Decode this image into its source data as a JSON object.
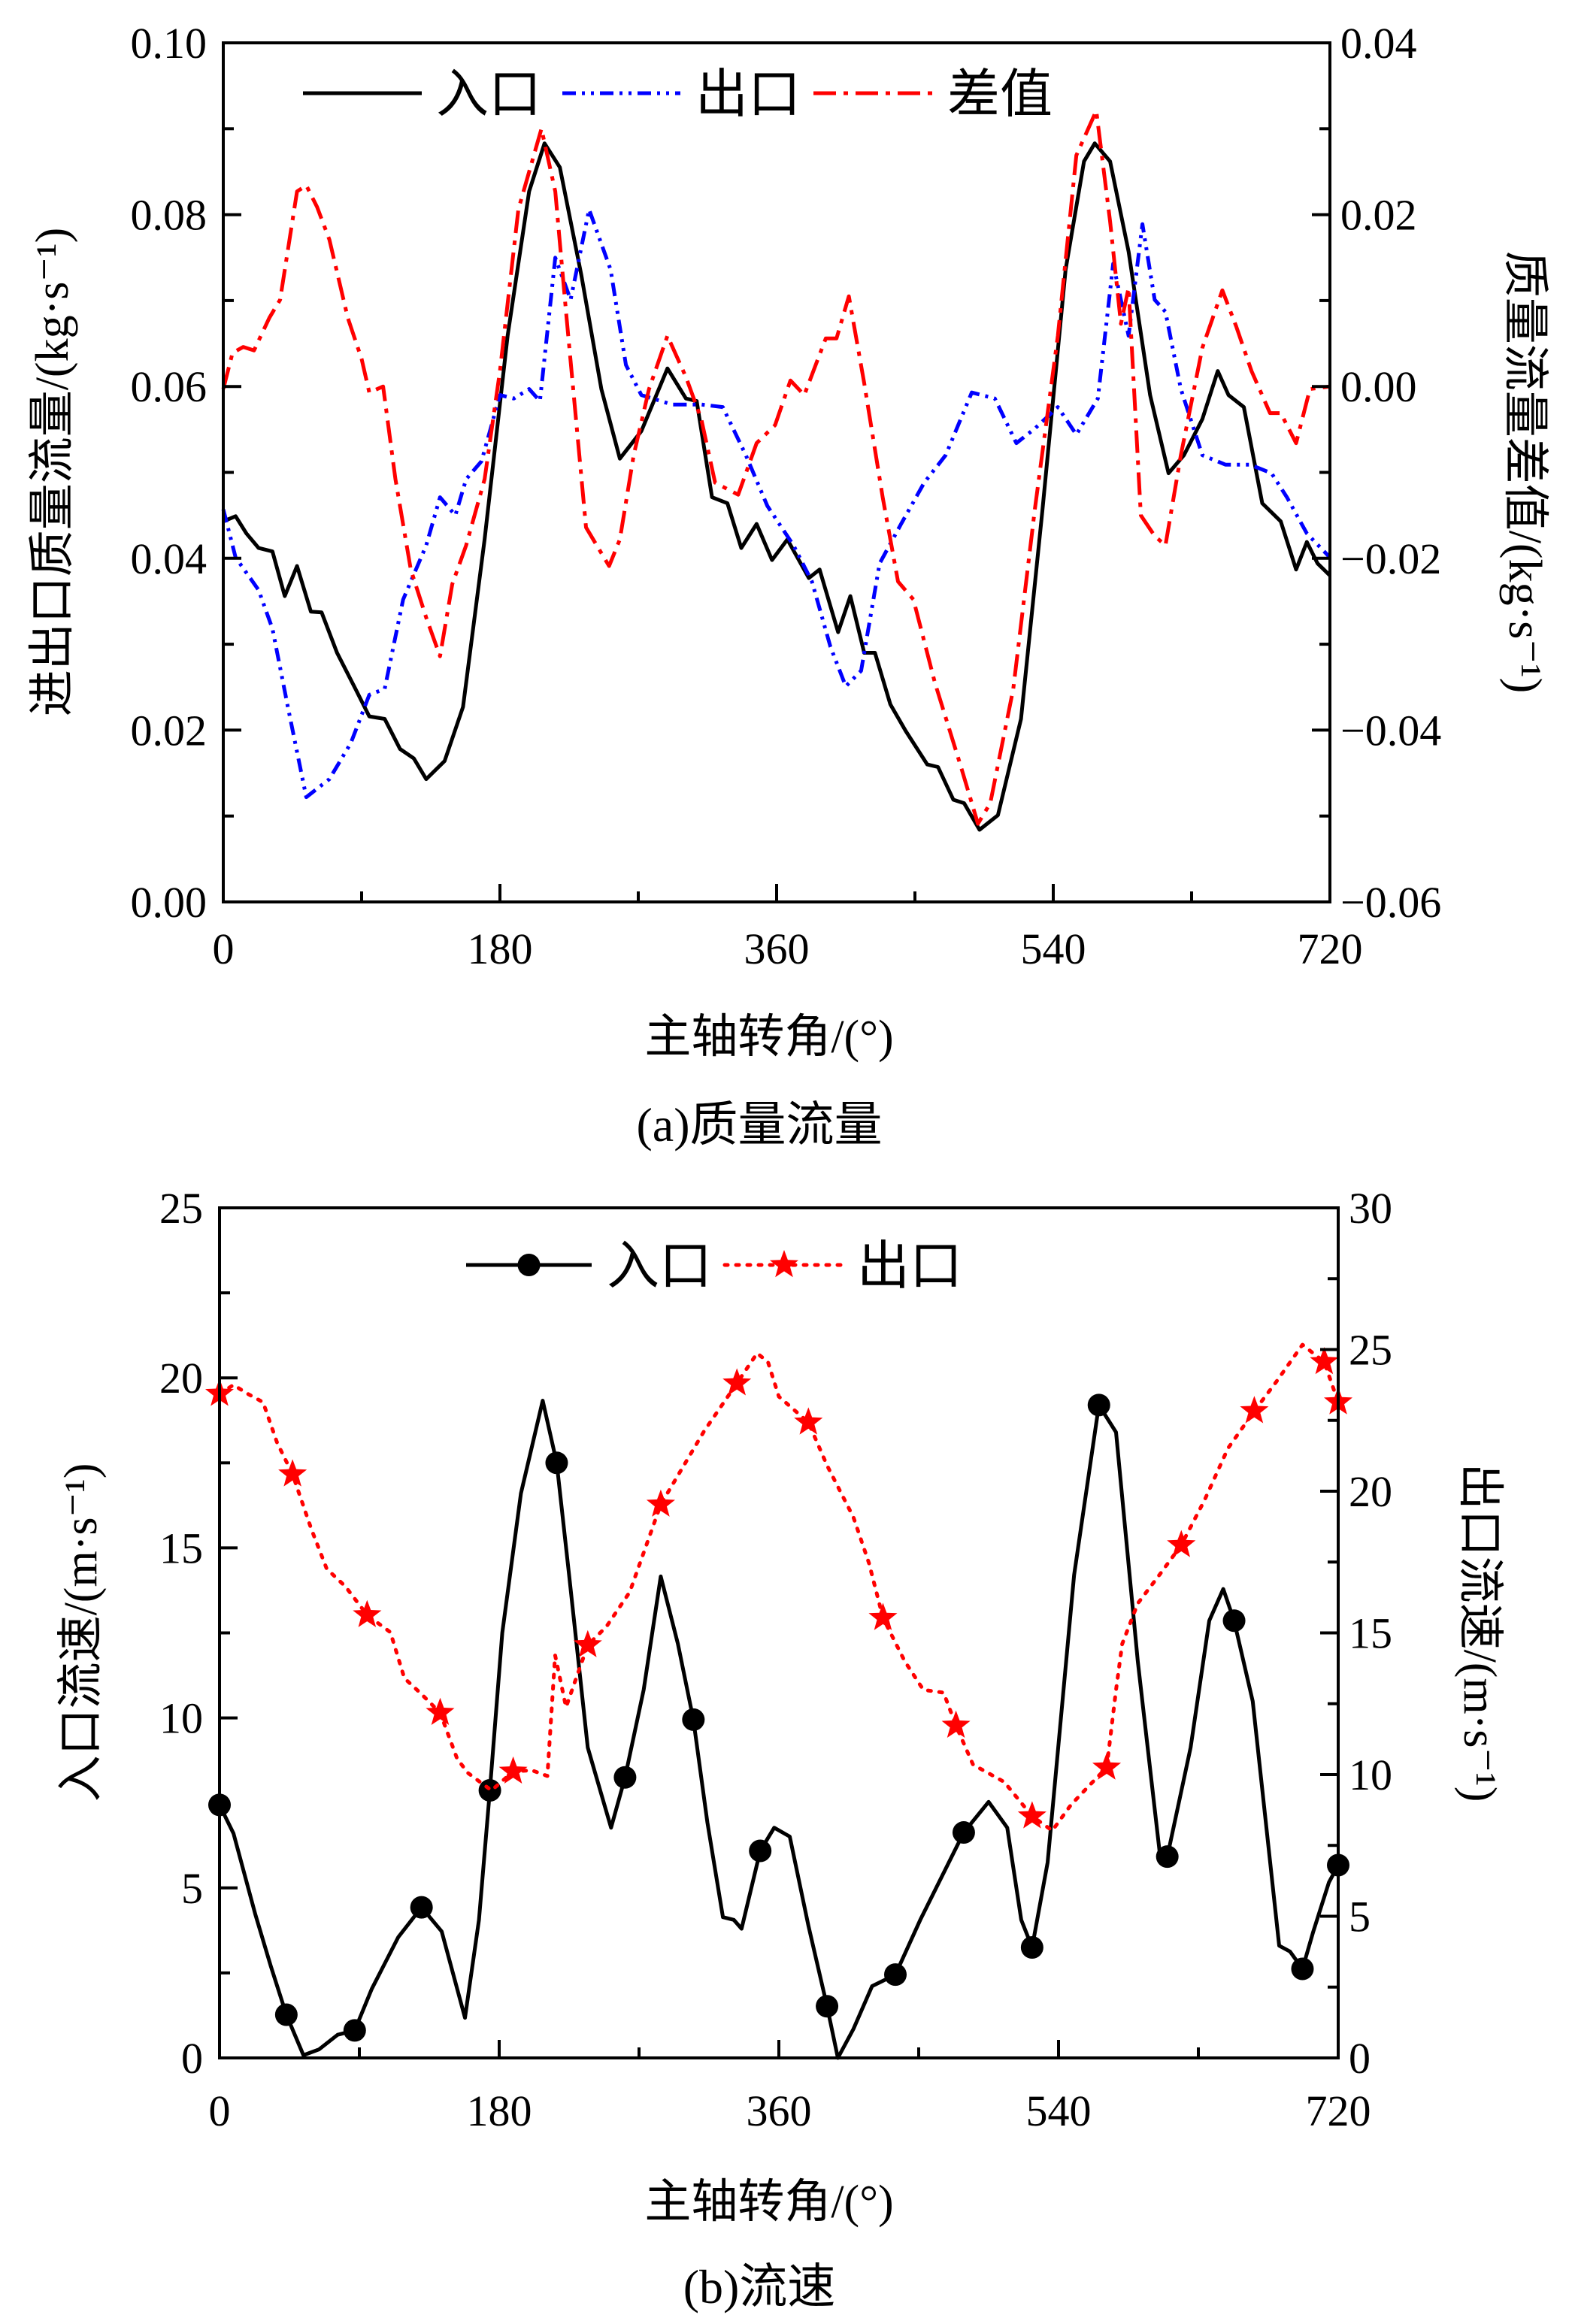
{
  "chart_data": [
    {
      "type": "line",
      "caption": "(a)质量流量",
      "xlabel": "主轴转角/(°)",
      "ylabel": "进出口质量流量/(kg·s⁻¹)",
      "y2label": "质量流量差值/(kg·s⁻¹)",
      "xlim": [
        0,
        720
      ],
      "ylim": [
        0,
        0.1
      ],
      "y2lim": [
        -0.06,
        0.04
      ],
      "xticks": [
        "0",
        "180",
        "360",
        "540",
        "720"
      ],
      "yticks": [
        "0.00",
        "0.02",
        "0.04",
        "0.06",
        "0.08",
        "0.10"
      ],
      "y2ticks": [
        "−0.06",
        "−0.04",
        "−0.02",
        "0.00",
        "0.02",
        "0.04"
      ],
      "grid": false,
      "legend_position": "top",
      "series": [
        {
          "name": "入口",
          "axis": "left",
          "color": "#000000",
          "style": "solid",
          "x": [
            0,
            8,
            15,
            23,
            32,
            40,
            48,
            57,
            64,
            74,
            86,
            95,
            105,
            115,
            124,
            132,
            144,
            156,
            170,
            185,
            199,
            209,
            219,
            233,
            246,
            258,
            272,
            289,
            301,
            308,
            318,
            328,
            337,
            347,
            357,
            367,
            381,
            388,
            400,
            408,
            417,
            424,
            434,
            444,
            458,
            465,
            475,
            482,
            492,
            504,
            519,
            533,
            548,
            560,
            567,
            577,
            589,
            603,
            615,
            625,
            637,
            647,
            654,
            664,
            676,
            688,
            698,
            705,
            712,
            720
          ],
          "y": [
            0.0443,
            0.0449,
            0.0429,
            0.0412,
            0.0408,
            0.0356,
            0.0391,
            0.0338,
            0.0337,
            0.029,
            0.0248,
            0.0216,
            0.0213,
            0.0178,
            0.0167,
            0.0143,
            0.0164,
            0.0227,
            0.0422,
            0.0659,
            0.0827,
            0.0883,
            0.0855,
            0.0729,
            0.0597,
            0.0516,
            0.0548,
            0.0621,
            0.0586,
            0.0583,
            0.0471,
            0.0464,
            0.0412,
            0.044,
            0.0398,
            0.0422,
            0.0377,
            0.0387,
            0.0314,
            0.0356,
            0.029,
            0.029,
            0.023,
            0.0199,
            0.016,
            0.0157,
            0.0119,
            0.0115,
            0.0084,
            0.0101,
            0.0213,
            0.0457,
            0.0736,
            0.0862,
            0.0883,
            0.0862,
            0.0757,
            0.059,
            0.0499,
            0.052,
            0.0562,
            0.0618,
            0.059,
            0.0576,
            0.0464,
            0.0443,
            0.0387,
            0.0419,
            0.0394,
            0.038
          ]
        },
        {
          "name": "出口",
          "axis": "left",
          "color": "#0000FF",
          "style": "dash-dot-dot",
          "x": [
            0,
            8,
            23,
            32,
            42,
            54,
            69,
            83,
            95,
            105,
            117,
            132,
            141,
            151,
            158,
            168,
            180,
            189,
            199,
            206,
            216,
            226,
            238,
            252,
            262,
            272,
            292,
            311,
            325,
            340,
            354,
            371,
            383,
            395,
            405,
            415,
            427,
            441,
            456,
            470,
            487,
            502,
            516,
            528,
            543,
            555,
            569,
            579,
            589,
            598,
            606,
            613,
            623,
            637,
            652,
            668,
            682,
            692,
            705,
            720
          ],
          "y": [
            0.0457,
            0.0401,
            0.0363,
            0.0318,
            0.0227,
            0.0122,
            0.0143,
            0.0185,
            0.0241,
            0.0248,
            0.0352,
            0.0415,
            0.0471,
            0.045,
            0.0492,
            0.0513,
            0.059,
            0.0586,
            0.0597,
            0.0583,
            0.075,
            0.0701,
            0.0806,
            0.0736,
            0.0625,
            0.059,
            0.0579,
            0.0579,
            0.0576,
            0.052,
            0.0461,
            0.0415,
            0.0373,
            0.0297,
            0.0251,
            0.0269,
            0.0394,
            0.044,
            0.0488,
            0.052,
            0.0593,
            0.0586,
            0.0534,
            0.0551,
            0.0576,
            0.0544,
            0.0586,
            0.0743,
            0.0659,
            0.0789,
            0.0701,
            0.0687,
            0.0597,
            0.052,
            0.0509,
            0.0509,
            0.0499,
            0.0471,
            0.0429,
            0.0401
          ]
        },
        {
          "name": "差值",
          "axis": "right",
          "color": "#FF0000",
          "style": "dash-dot",
          "x": [
            0,
            6,
            13,
            20,
            30,
            37,
            48,
            54,
            61,
            69,
            81,
            90,
            95,
            104,
            112,
            122,
            132,
            141,
            149,
            158,
            170,
            180,
            192,
            207,
            216,
            223,
            236,
            243,
            251,
            258,
            267,
            277,
            289,
            301,
            311,
            320,
            335,
            347,
            359,
            369,
            378,
            392,
            399,
            407,
            417,
            429,
            439,
            449,
            463,
            480,
            491,
            499,
            514,
            528,
            543,
            555,
            568,
            577,
            584,
            589,
            597,
            606,
            613,
            623,
            637,
            650,
            659,
            669,
            681,
            688,
            698,
            707,
            720
          ],
          "y": [
            -0.0003,
            0.0039,
            0.0046,
            0.0042,
            0.008,
            0.0101,
            0.0227,
            0.0234,
            0.0209,
            0.0171,
            0.008,
            0.0032,
            -0.0007,
            0.0,
            -0.0108,
            -0.0213,
            -0.0269,
            -0.0314,
            -0.023,
            -0.0185,
            -0.0108,
            0.0018,
            0.0206,
            0.03,
            0.0227,
            0.0087,
            -0.0164,
            -0.0185,
            -0.0209,
            -0.0178,
            -0.008,
            -0.0003,
            0.0059,
            0.0011,
            -0.0038,
            -0.0112,
            -0.0126,
            -0.0066,
            -0.0045,
            0.0007,
            -0.001,
            0.0056,
            0.0056,
            0.0105,
            0.0004,
            -0.0129,
            -0.0227,
            -0.0248,
            -0.0345,
            -0.0443,
            -0.0509,
            -0.0485,
            -0.0352,
            -0.0143,
            0.0059,
            0.0269,
            0.0321,
            0.0192,
            0.0073,
            0.0115,
            -0.015,
            -0.0174,
            -0.0185,
            -0.008,
            0.0045,
            0.0112,
            0.007,
            0.0018,
            -0.0031,
            -0.0031,
            -0.0066,
            -0.0003,
            0.0
          ]
        }
      ]
    },
    {
      "type": "line",
      "caption": "(b)流速",
      "xlabel": "主轴转角/(°)",
      "ylabel": "入口流速/(m·s⁻¹)",
      "y2label": "出口流速/(m·s⁻¹)",
      "xlim": [
        0,
        720
      ],
      "ylim": [
        0,
        25
      ],
      "y2lim": [
        0,
        30
      ],
      "xticks": [
        "0",
        "180",
        "360",
        "540",
        "720"
      ],
      "yticks": [
        "0",
        "5",
        "10",
        "15",
        "20",
        "25"
      ],
      "y2ticks": [
        "0",
        "5",
        "10",
        "15",
        "20",
        "25",
        "30"
      ],
      "grid": false,
      "legend_position": "top",
      "series": [
        {
          "name": "入口",
          "axis": "left",
          "color": "#000000",
          "style": "solid",
          "marker": "circle",
          "x": [
            0,
            9,
            23,
            33,
            43,
            54,
            64,
            76,
            87,
            98,
            115,
            130,
            143,
            158,
            167,
            174,
            182,
            194,
            208,
            217,
            225,
            237,
            252,
            261,
            273,
            284,
            295,
            305,
            314,
            324,
            331,
            336,
            348,
            357,
            367,
            379,
            391,
            398,
            408,
            420,
            435,
            451,
            479,
            495,
            507,
            516,
            523,
            533,
            550,
            566,
            577,
            591,
            605,
            610,
            625,
            637,
            646,
            653,
            665,
            682,
            689,
            697,
            704,
            714,
            720
          ],
          "y": [
            7.44,
            6.6,
            4.23,
            2.7,
            1.27,
            0.08,
            0.25,
            0.68,
            0.81,
            2.03,
            3.55,
            4.43,
            3.72,
            1.18,
            4.06,
            7.87,
            12.5,
            16.6,
            19.33,
            17.5,
            14.2,
            9.13,
            6.77,
            8.25,
            10.83,
            14.16,
            12.18,
            9.95,
            6.93,
            4.14,
            4.06,
            3.8,
            6.09,
            6.77,
            6.51,
            3.89,
            1.52,
            0,
            0.85,
            2.11,
            2.45,
            4.06,
            6.63,
            7.53,
            6.77,
            4.06,
            3.25,
            5.75,
            14.2,
            19.2,
            18.4,
            11.67,
            6.09,
            5.92,
            9.13,
            12.86,
            13.79,
            12.86,
            10.49,
            3.3,
            3.13,
            2.62,
            3.72,
            5.16,
            5.67
          ],
          "markers_x": [
            0,
            43,
            87,
            130,
            174,
            217,
            261,
            305,
            348,
            391,
            435,
            479,
            523,
            566,
            610,
            653,
            697,
            720
          ],
          "markers_y": [
            7.44,
            1.27,
            0.81,
            4.43,
            7.87,
            17.5,
            8.25,
            9.95,
            6.09,
            1.52,
            2.45,
            6.63,
            3.25,
            19.2,
            5.92,
            12.86,
            2.62,
            5.67
          ]
        },
        {
          "name": "出口",
          "axis": "right",
          "color": "#FF0000",
          "style": "dotted",
          "marker": "star",
          "x": [
            0,
            9,
            18,
            28,
            37,
            47,
            59,
            69,
            81,
            95,
            110,
            119,
            129,
            142,
            153,
            160,
            175,
            189,
            201,
            211,
            216,
            223,
            237,
            249,
            264,
            284,
            312,
            333,
            346,
            353,
            360,
            379,
            391,
            408,
            418,
            427,
            441,
            453,
            466,
            474,
            485,
            505,
            523,
            536,
            548,
            562,
            571,
            577,
            581,
            591,
            605,
            619,
            634,
            649,
            666,
            680,
            697,
            711,
            720
          ],
          "y": [
            23.44,
            23.75,
            23.44,
            23.14,
            21.72,
            20.6,
            18.68,
            17.26,
            16.64,
            15.63,
            15.02,
            13.4,
            12.89,
            12.18,
            10.55,
            10.05,
            9.44,
            10.11,
            10.15,
            9.95,
            14.21,
            12.38,
            14.57,
            15.22,
            16.44,
            19.53,
            22.13,
            23.81,
            24.87,
            24.56,
            23.34,
            22.43,
            20.91,
            19.08,
            17.46,
            15.53,
            14.0,
            12.99,
            12.89,
            11.73,
            10.35,
            9.74,
            8.53,
            8.02,
            8.93,
            9.74,
            10.25,
            12.99,
            14.61,
            16.04,
            17.05,
            18.1,
            19.69,
            21.51,
            22.83,
            23.85,
            25.17,
            24.56,
            23.14
          ],
          "markers_x": [
            0,
            47,
            95,
            142,
            189,
            237,
            284,
            333,
            379,
            427,
            474,
            523,
            571,
            619,
            666,
            711,
            720
          ],
          "markers_y": [
            23.44,
            20.6,
            15.63,
            12.18,
            10.11,
            14.57,
            19.53,
            23.81,
            22.43,
            15.53,
            11.73,
            8.53,
            10.25,
            18.1,
            22.83,
            24.56,
            23.14
          ]
        }
      ]
    }
  ]
}
